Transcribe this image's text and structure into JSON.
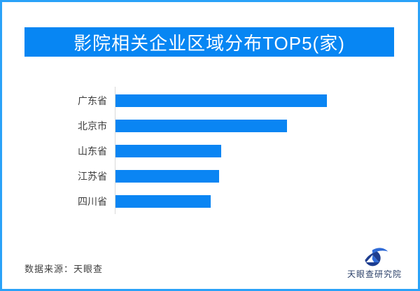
{
  "header": {
    "title": "影院相关企业区域分布TOP5(家)"
  },
  "chart_data": {
    "type": "bar",
    "orientation": "horizontal",
    "title": "影院相关企业区域分布TOP5(家)",
    "categories": [
      "广东省",
      "北京市",
      "山东省",
      "江苏省",
      "四川省"
    ],
    "values": [
      100,
      81,
      50,
      49,
      45
    ],
    "xlabel": "",
    "ylabel": "",
    "grid": false,
    "value_labels_shown": false,
    "legend": null,
    "bar_color": "#0a85f3"
  },
  "footer": {
    "source": "数据来源：天眼查",
    "logo_text": "天眼查研究院"
  },
  "colors": {
    "page_border": "#2aa2f8",
    "banner_bg": "#0786f3",
    "banner_text": "#ffffff",
    "bar": "#0a85f3",
    "axis_line": "#d9d9d9",
    "label_text": "#3d3d3d",
    "source_text": "#404040",
    "logo_navy": "#1d3d8f",
    "logo_blue": "#2f6ad6",
    "logo_text": "#2b4069"
  }
}
